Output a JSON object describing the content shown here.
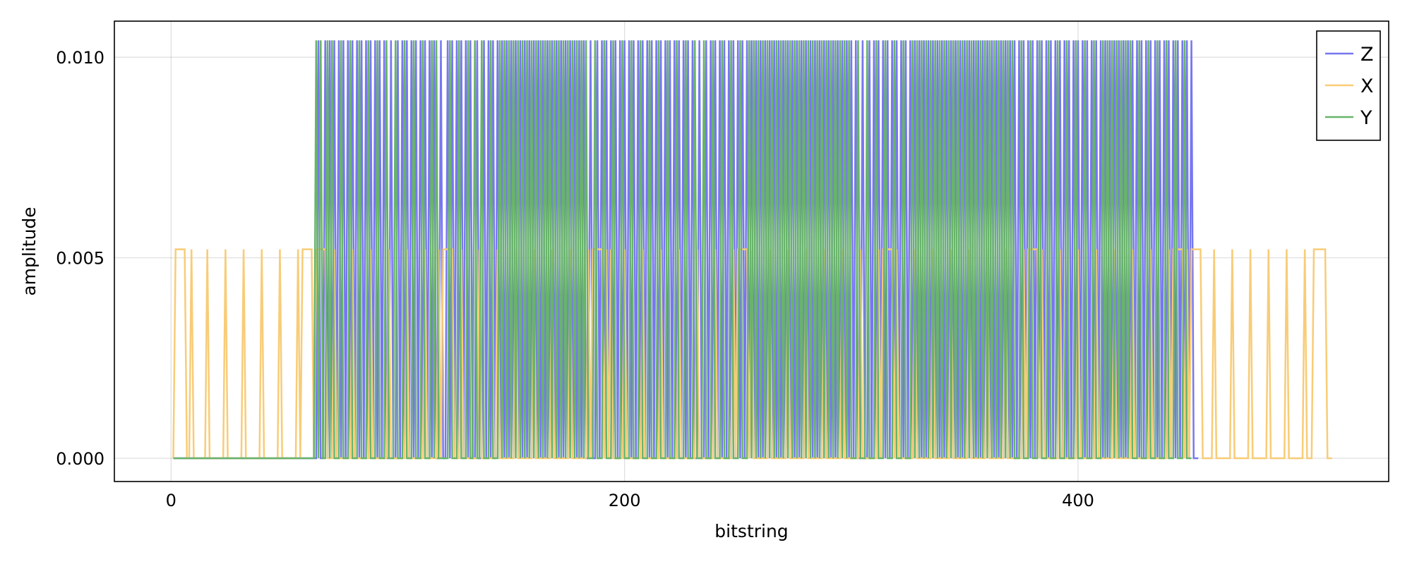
{
  "chart_data": {
    "type": "line",
    "xlabel": "bitstring",
    "ylabel": "amplitude",
    "xlim": [
      -25,
      537
    ],
    "ylim": [
      -0.00058,
      0.0109
    ],
    "xticks": [
      0,
      200,
      400
    ],
    "xtick_labels": [
      "0",
      "200",
      "400"
    ],
    "yticks": [
      0.0,
      0.005,
      0.01
    ],
    "ytick_labels": [
      "0.000",
      "0.005",
      "0.010"
    ],
    "grid": true,
    "legend": {
      "position": "top-right",
      "entries": [
        "Z",
        "X",
        "Y"
      ]
    },
    "series": [
      {
        "name": "Z",
        "color": "#7777f0",
        "x_start": 1,
        "baseline": 0.0,
        "peak": 0.01042,
        "peak_x": [
          65,
          68,
          70,
          72,
          74,
          76,
          78,
          80,
          82,
          84,
          86,
          88,
          90,
          92,
          94,
          97,
          100,
          102,
          104,
          106,
          108,
          110,
          112,
          114,
          116,
          119,
          122,
          124,
          126,
          128,
          130,
          132,
          135,
          138,
          140,
          142,
          144,
          146,
          148,
          150,
          152,
          154,
          156,
          158,
          160,
          162,
          164,
          166,
          168,
          170,
          172,
          174,
          176,
          178,
          180,
          182,
          185,
          188,
          190,
          192,
          194,
          196,
          198,
          200,
          202,
          204,
          206,
          208,
          210,
          212,
          214,
          216,
          218,
          220,
          222,
          224,
          226,
          228,
          230,
          233,
          236,
          238,
          240,
          242,
          244,
          246,
          248,
          250,
          252,
          254,
          256,
          258,
          260,
          262,
          264,
          266,
          268,
          270,
          272,
          274,
          276,
          278,
          280,
          282,
          284,
          286,
          288,
          290,
          292,
          294,
          296,
          298,
          300,
          302,
          305,
          308,
          310,
          312,
          314,
          316,
          318,
          320,
          322,
          324,
          326,
          328,
          330,
          332,
          334,
          336,
          338,
          340,
          342,
          344,
          346,
          348,
          350,
          352,
          354,
          356,
          358,
          360,
          362,
          364,
          366,
          368,
          370,
          372,
          374,
          376,
          378,
          380,
          382,
          384,
          386,
          388,
          390,
          392,
          394,
          396,
          398,
          400,
          402,
          404,
          406,
          408,
          410,
          412,
          414,
          416,
          418,
          420,
          422,
          424,
          426,
          428,
          430,
          432,
          434,
          436,
          438,
          440,
          442,
          444,
          446,
          448,
          450
        ]
      },
      {
        "name": "X",
        "color": "#f8cc77",
        "x_start": 1,
        "baseline": 0.0,
        "peak": 0.00521,
        "peak_x": [
          2,
          3,
          4,
          5,
          6,
          9,
          16,
          24,
          32,
          40,
          48,
          56,
          58,
          59,
          60,
          61,
          62,
          64,
          65,
          66,
          67,
          68,
          72,
          80,
          88,
          96,
          104,
          112,
          118,
          120,
          121,
          122,
          123,
          124,
          128,
          136,
          144,
          152,
          160,
          168,
          176,
          184,
          186,
          187,
          188,
          189,
          190,
          192,
          194,
          200,
          208,
          216,
          224,
          232,
          240,
          248,
          250,
          251,
          252,
          253,
          254,
          256,
          264,
          272,
          280,
          288,
          296,
          304,
          312,
          314,
          315,
          316,
          317,
          318,
          320,
          328,
          336,
          344,
          352,
          360,
          368,
          376,
          378,
          379,
          380,
          381,
          382,
          384,
          392,
          400,
          408,
          416,
          424,
          432,
          440,
          442,
          443,
          444,
          445,
          446,
          448,
          450,
          451,
          452,
          453,
          454,
          460,
          468,
          476,
          484,
          492,
          500,
          504,
          505,
          506,
          507,
          508,
          509
        ]
      },
      {
        "name": "Y",
        "color": "#68b46a",
        "x_start": 1,
        "baseline": 0.0,
        "peak": 0.01042,
        "peak_x": [
          64,
          66,
          69,
          71,
          75,
          79,
          83,
          87,
          91,
          95,
          99,
          103,
          107,
          111,
          115,
          117,
          123,
          127,
          131,
          134,
          137,
          141,
          145,
          147,
          149,
          151,
          153,
          155,
          157,
          159,
          161,
          163,
          165,
          167,
          169,
          171,
          173,
          175,
          177,
          179,
          181,
          183,
          187,
          191,
          195,
          199,
          203,
          207,
          211,
          215,
          219,
          223,
          227,
          231,
          235,
          239,
          243,
          247,
          251,
          255,
          257,
          259,
          261,
          263,
          265,
          267,
          269,
          271,
          273,
          275,
          277,
          279,
          281,
          283,
          285,
          287,
          289,
          291,
          293,
          295,
          297,
          299,
          303,
          307,
          311,
          315,
          319,
          323,
          327,
          329,
          331,
          333,
          335,
          337,
          339,
          341,
          343,
          345,
          347,
          349,
          351,
          353,
          355,
          357,
          359,
          361,
          363,
          365,
          367,
          369,
          371,
          375,
          379,
          383,
          387,
          391,
          395,
          399,
          403,
          407,
          411,
          413,
          415,
          417,
          419,
          421,
          423,
          427,
          431,
          435,
          439,
          443,
          447
        ]
      }
    ]
  }
}
